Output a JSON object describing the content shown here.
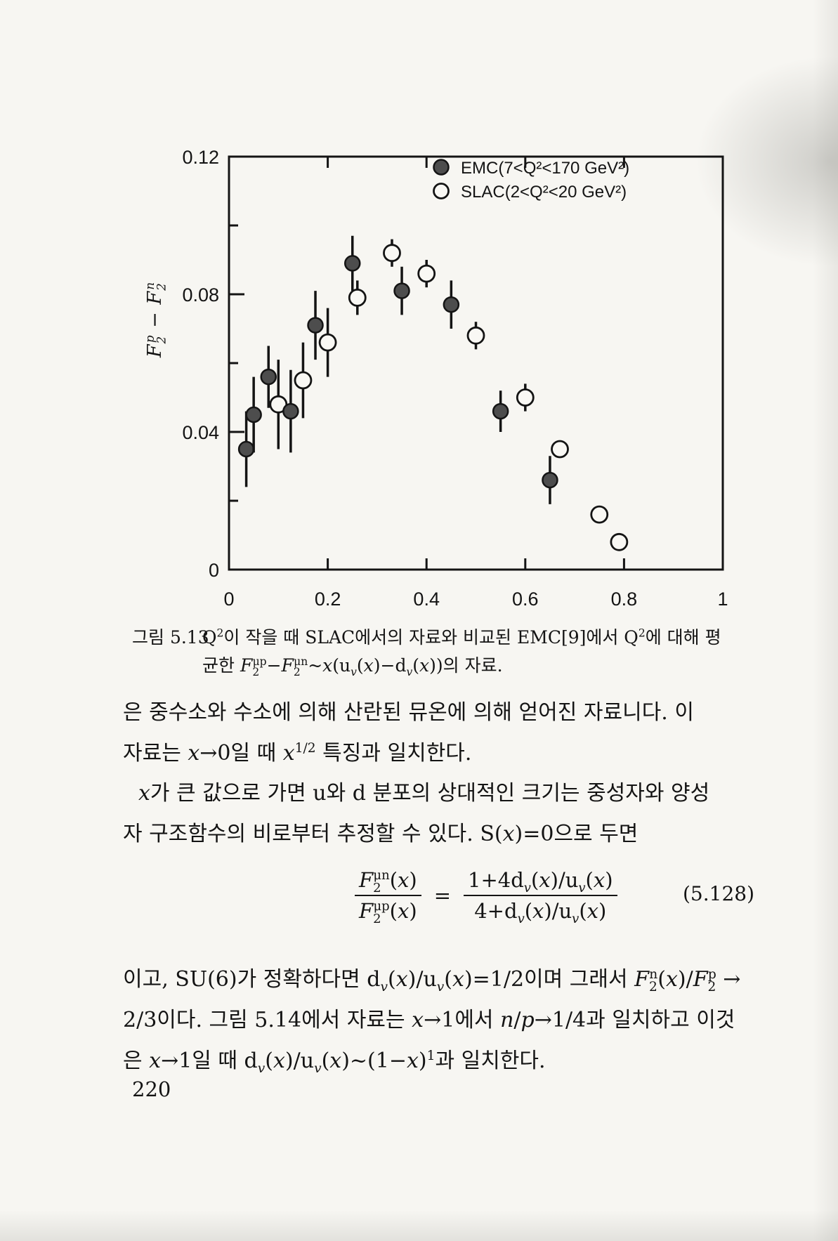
{
  "page": {
    "number": "220"
  },
  "figure": {
    "caption_label": "그림 5.13",
    "caption_line1_html": "Q<sup>2</sup>이 작을 때 SLAC에서의 자료와 비교된 EMC[9]에서 Q<sup>2</sup>에 대해 평",
    "caption_line2_html": "균한 <i>F</i><sub>2</sub><sup class='ss'>μp</sup>−<i>F</i><sub>2</sub><sup class='ss'>μn</sup>~<i>x</i>(u<sub><i>v</i></sub>(<i>x</i>)−d<sub><i>v</i></sub>(<i>x</i>))의 자료."
  },
  "chart_data": {
    "type": "scatter",
    "title": "",
    "xlabel": "x",
    "ylabel_html": "<i>F</i><sub>2</sub><sup class='ss'>p</sup> − <i>F</i><sub>2</sub><sup class='ss'>n</sup>",
    "xlim": [
      0,
      1
    ],
    "ylim": [
      0,
      0.12
    ],
    "grid": false,
    "legend_position": "top-right-inside",
    "x_ticks": [
      0,
      0.2,
      0.4,
      0.6,
      0.8,
      1
    ],
    "x_tick_labels": [
      "0",
      "0.2",
      "0.4",
      "0.6",
      "0.8",
      "1"
    ],
    "x_ticks_top": [
      0.2,
      0.4,
      0.6,
      0.8
    ],
    "y_ticks_major": [
      0,
      0.04,
      0.08,
      0.12
    ],
    "y_tick_labels": [
      "0",
      "0.04",
      "0.08",
      "0.12"
    ],
    "y_ticks_minor": [
      0.02,
      0.06,
      0.1
    ],
    "ink_color": "#141414",
    "series": [
      {
        "name": "EMC(7<Q²<170 GeV²)",
        "marker": "filled",
        "fill": "#4d4d4d",
        "points": [
          [
            0.035,
            0.035,
            0.011
          ],
          [
            0.05,
            0.045,
            0.011
          ],
          [
            0.08,
            0.056,
            0.009
          ],
          [
            0.125,
            0.046,
            0.012
          ],
          [
            0.175,
            0.071,
            0.01
          ],
          [
            0.25,
            0.089,
            0.008
          ],
          [
            0.35,
            0.081,
            0.007
          ],
          [
            0.45,
            0.077,
            0.007
          ],
          [
            0.55,
            0.046,
            0.006
          ],
          [
            0.65,
            0.026,
            0.007
          ]
        ]
      },
      {
        "name": "SLAC(2<Q²<20 GeV²)",
        "marker": "open",
        "fill": "#f9f8f4",
        "points": [
          [
            0.1,
            0.048,
            0.013
          ],
          [
            0.15,
            0.055,
            0.011
          ],
          [
            0.2,
            0.066,
            0.01
          ],
          [
            0.26,
            0.079,
            0.005
          ],
          [
            0.33,
            0.092,
            0.004
          ],
          [
            0.4,
            0.086,
            0.004
          ],
          [
            0.5,
            0.068,
            0.004
          ],
          [
            0.6,
            0.05,
            0.004
          ],
          [
            0.67,
            0.035,
            0.002
          ],
          [
            0.75,
            0.016,
            0.002
          ],
          [
            0.79,
            0.008,
            0.002
          ]
        ]
      }
    ]
  },
  "body": {
    "p1_l1_html": "은 중수소와 수소에 의해 산란된 뮤온에 의해 얻어진 자료니다. 이",
    "p1_l2_html": "자료는 <i>x</i>→0일 때 <i>x</i><sup>1/2</sup> 특징과 일치한다.",
    "p2_l1_html": "<i>x</i>가 큰 값으로 가면 u와 d 분포의 상대적인 크기는 중성자와 양성",
    "p2_l2_html": "자 구조함수의 비로부터 추정할 수 있다. S(<i>x</i>)=0으로 두면",
    "p3_l1_html": "이고, SU(6)가 정확하다면 d<sub><i>v</i></sub>(<i>x</i>)/u<sub><i>v</i></sub>(<i>x</i>)=1/2이며 그래서 <i>F</i><sub>2</sub><sup class='ss'>n</sup>(<i>x</i>)/<i>F</i><sub>2</sub><sup class='ss'>p</sup> →",
    "p3_l2_html": "2/3이다. 그림 5.14에서 자료는 <i>x</i>→1에서 <i>n</i>/<i>p</i>→1/4과 일치하고 이것",
    "p3_l3_html": "은 <i>x</i>→1일 때 d<sub><i>v</i></sub>(<i>x</i>)/u<sub><i>v</i></sub>(<i>x</i>)~(1−<i>x</i>)<sup>1</sup>과 일치한다."
  },
  "equation": {
    "lhs_num_html": "<i>F</i><sub>2</sub><sup class='ss'>μn</sup>(<i>x</i>)",
    "lhs_den_html": "<i>F</i><sub>2</sub><sup class='ss'>μp</sup>(<i>x</i>)",
    "equals": "=",
    "rhs_num_html": "1+4d<sub><i>v</i></sub>(<i>x</i>)/u<sub><i>v</i></sub>(<i>x</i>)",
    "rhs_den_html": "4+d<sub><i>v</i></sub>(<i>x</i>)/u<sub><i>v</i></sub>(<i>x</i>)",
    "number": "(5.128)"
  }
}
